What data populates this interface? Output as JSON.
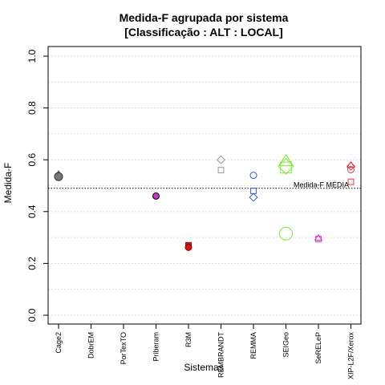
{
  "chart_data": {
    "type": "scatter",
    "title": "Medida-F agrupada por sistema",
    "subtitle": "[Classificação : ALT : LOCAL]",
    "xlabel": "Sistemas",
    "ylabel": "Medida-F",
    "ylim": [
      0.0,
      1.0
    ],
    "yticks": [
      "0.0",
      "0.2",
      "0.4",
      "0.6",
      "0.8",
      "1.0"
    ],
    "categories": [
      "Cage2",
      "DobrEM",
      "PorTexTO",
      "Priberam",
      "R3M",
      "REMBRANDT",
      "REMMA",
      "SEIGeo",
      "SeRELeP",
      "XIP-L2F/Xerox"
    ],
    "grid": true,
    "reference_line": {
      "label": "Medida-F MÉDIA",
      "value": 0.49
    },
    "points": [
      {
        "category": "Cage2",
        "value": 0.545,
        "shape": "triangle",
        "color": "#555555",
        "fill": "#888888",
        "size": "small"
      },
      {
        "category": "Cage2",
        "value": 0.54,
        "shape": "diamond",
        "color": "#555555",
        "fill": "#888888",
        "size": "small"
      },
      {
        "category": "Cage2",
        "value": 0.535,
        "shape": "circle",
        "color": "#333333",
        "fill": "#777777",
        "size": "medium"
      },
      {
        "category": "Priberam",
        "value": 0.46,
        "shape": "circle",
        "color": "#000000",
        "fill": "#cc33cc",
        "size": "small"
      },
      {
        "category": "R3M",
        "value": 0.27,
        "shape": "square",
        "color": "#880000",
        "fill": "#cc2222",
        "size": "small"
      },
      {
        "category": "R3M",
        "value": 0.262,
        "shape": "circle",
        "color": "#880000",
        "fill": "#dd1111",
        "size": "small"
      },
      {
        "category": "REMBRANDT",
        "value": 0.6,
        "shape": "diamond",
        "color": "#999999",
        "fill": "none",
        "size": "small"
      },
      {
        "category": "REMBRANDT",
        "value": 0.56,
        "shape": "square",
        "color": "#999999",
        "fill": "none",
        "size": "small"
      },
      {
        "category": "REMMA",
        "value": 0.54,
        "shape": "circle",
        "color": "#3355dd",
        "fill": "none",
        "size": "small"
      },
      {
        "category": "REMMA",
        "value": 0.48,
        "shape": "square",
        "color": "#3355dd",
        "fill": "none",
        "size": "small"
      },
      {
        "category": "REMMA",
        "value": 0.455,
        "shape": "diamond",
        "color": "#3355dd",
        "fill": "none",
        "size": "small"
      },
      {
        "category": "SEIGeo",
        "value": 0.595,
        "shape": "triangle",
        "color": "#77ee33",
        "fill": "none",
        "size": "large"
      },
      {
        "category": "SEIGeo",
        "value": 0.575,
        "shape": "diamond",
        "color": "#77ee33",
        "fill": "none",
        "size": "large"
      },
      {
        "category": "SEIGeo",
        "value": 0.57,
        "shape": "square",
        "color": "#77ee33",
        "fill": "none",
        "size": "large"
      },
      {
        "category": "SEIGeo",
        "value": 0.315,
        "shape": "circle",
        "color": "#77ee33",
        "fill": "none",
        "size": "large"
      },
      {
        "category": "SeRELeP",
        "value": 0.298,
        "shape": "triangle",
        "color": "#dd33cc",
        "fill": "none",
        "size": "small"
      },
      {
        "category": "SeRELeP",
        "value": 0.294,
        "shape": "square",
        "color": "#dd33cc",
        "fill": "none",
        "size": "small"
      },
      {
        "category": "XIP-L2F/Xerox",
        "value": 0.58,
        "shape": "triangle",
        "color": "#ee3344",
        "fill": "none",
        "size": "small"
      },
      {
        "category": "XIP-L2F/Xerox",
        "value": 0.575,
        "shape": "diamond",
        "color": "#ee3344",
        "fill": "none",
        "size": "small"
      },
      {
        "category": "XIP-L2F/Xerox",
        "value": 0.562,
        "shape": "circle",
        "color": "#ee3344",
        "fill": "none",
        "size": "small"
      },
      {
        "category": "XIP-L2F/Xerox",
        "value": 0.515,
        "shape": "square",
        "color": "#ee3344",
        "fill": "none",
        "size": "small"
      }
    ]
  }
}
